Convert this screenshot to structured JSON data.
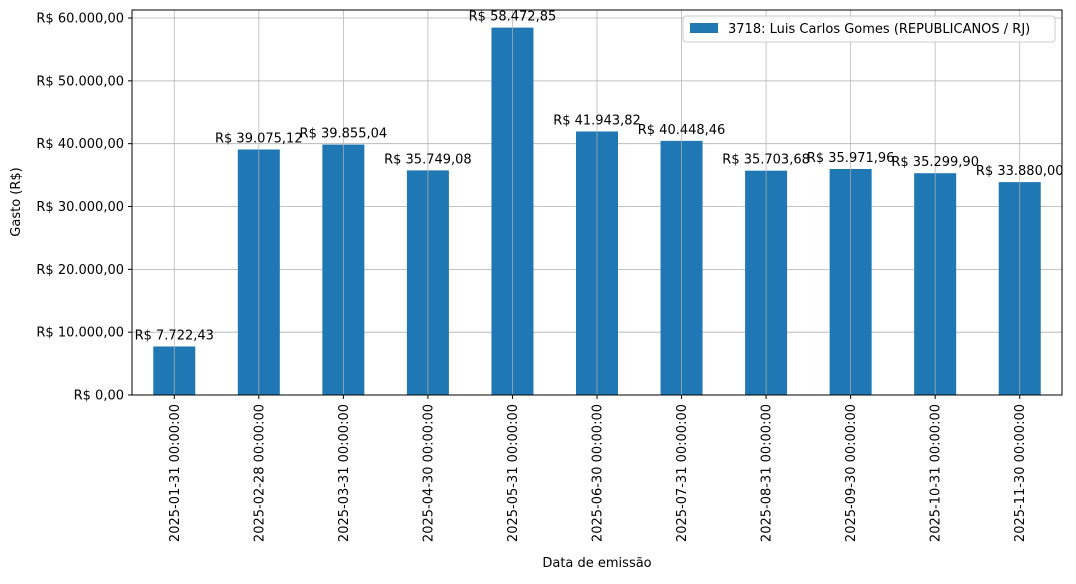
{
  "chart_data": {
    "type": "bar",
    "title": "",
    "xlabel": "Data de emissão",
    "ylabel": "Gasto (R$)",
    "ylim": [
      0,
      61276
    ],
    "grid": true,
    "legend_position": "top-right",
    "bar_color": "#1f77b4",
    "categories": [
      "2025-01-31 00:00:00",
      "2025-02-28 00:00:00",
      "2025-03-31 00:00:00",
      "2025-04-30 00:00:00",
      "2025-05-31 00:00:00",
      "2025-06-30 00:00:00",
      "2025-07-31 00:00:00",
      "2025-08-31 00:00:00",
      "2025-09-30 00:00:00",
      "2025-10-31 00:00:00",
      "2025-11-30 00:00:00"
    ],
    "series": [
      {
        "name": "3718: Luis Carlos Gomes (REPUBLICANOS / RJ)",
        "values": [
          7722.43,
          39075.12,
          39855.04,
          35749.08,
          58472.85,
          41943.82,
          40448.46,
          35703.68,
          35971.96,
          35299.9,
          33880.0
        ]
      }
    ],
    "data_labels": [
      "R$ 7.722,43",
      "R$ 39.075,12",
      "R$ 39.855,04",
      "R$ 35.749,08",
      "R$ 58.472,85",
      "R$ 41.943,82",
      "R$ 40.448,46",
      "R$ 35.703,68",
      "R$ 35.971,96",
      "R$ 35.299,90",
      "R$ 33.880,00"
    ],
    "yticks": [
      0,
      10000,
      20000,
      30000,
      40000,
      50000,
      60000
    ],
    "ytick_labels": [
      "R$ 0,00",
      "R$ 10.000,00",
      "R$ 20.000,00",
      "R$ 30.000,00",
      "R$ 40.000,00",
      "R$ 50.000,00",
      "R$ 60.000,00"
    ]
  }
}
